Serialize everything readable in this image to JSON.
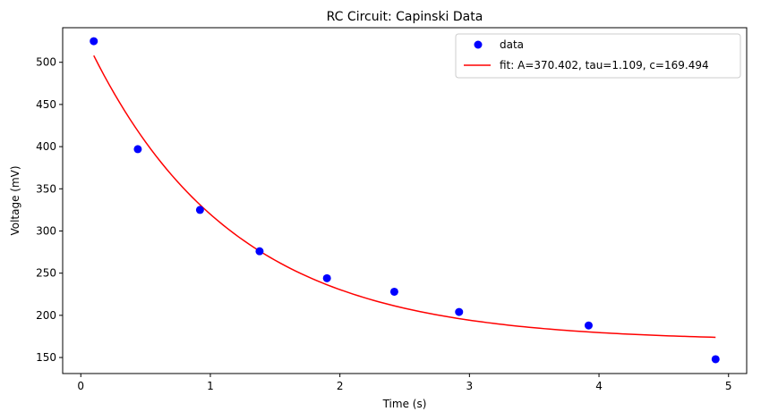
{
  "chart_data": {
    "type": "scatter",
    "title": "RC Circuit: Capinski Data",
    "xlabel": "Time (s)",
    "ylabel": "Voltage (mV)",
    "xlim": [
      -0.14,
      5.14
    ],
    "ylim": [
      131,
      541
    ],
    "xticks": [
      0,
      1,
      2,
      3,
      4,
      5
    ],
    "yticks": [
      150,
      200,
      250,
      300,
      350,
      400,
      450,
      500
    ],
    "grid": false,
    "legend_position": "top-right",
    "series": [
      {
        "name": "data",
        "kind": "scatter",
        "color": "#0000ff",
        "x": [
          0.1,
          0.44,
          0.92,
          1.38,
          1.9,
          2.42,
          2.92,
          3.92,
          4.9
        ],
        "y": [
          525,
          397,
          325,
          276,
          244,
          228,
          204,
          188,
          148
        ]
      },
      {
        "name": "fit: A=370.402, tau=1.109, c=169.494",
        "kind": "line",
        "color": "#ff0000",
        "model": "exponential_decay",
        "params": {
          "A": 370.402,
          "tau": 1.109,
          "c": 169.494
        },
        "x_range": [
          0.1,
          4.9
        ]
      }
    ]
  }
}
